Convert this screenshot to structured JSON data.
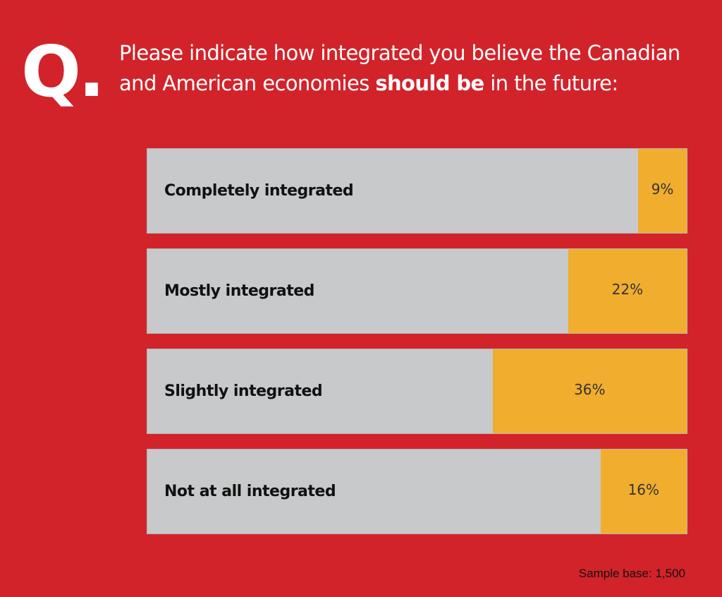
{
  "header": {
    "q_mark": "Q.",
    "question_pre": "Please indicate how integrated you believe the Canadian and American economies ",
    "question_bold": "should be",
    "question_post": " in the future:"
  },
  "chart_data": {
    "type": "bar",
    "orientation": "horizontal",
    "title": "Please indicate how integrated you believe the Canadian and American economies should be in the future:",
    "categories": [
      "Completely integrated",
      "Mostly integrated",
      "Slightly integrated",
      "Not at all integrated"
    ],
    "values": [
      9,
      22,
      36,
      16
    ],
    "value_labels": [
      "9%",
      "22%",
      "36%",
      "16%"
    ],
    "xlim": [
      0,
      100
    ],
    "colors": {
      "fill": "#f0ad2e",
      "track": "#c8c9cb",
      "background": "#d2232a"
    }
  },
  "footer": {
    "sample_base": "Sample base: 1,500"
  }
}
